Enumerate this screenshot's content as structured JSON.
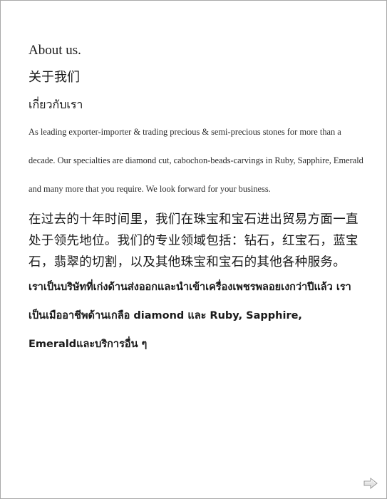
{
  "about": {
    "title_en": "About us.",
    "title_zh": "关于我们",
    "title_th": "เกี่ยวกับเรา",
    "para_en": "As leading exporter-importer & trading precious & semi-precious stones for more than a decade. Our specialties are diamond cut, cabochon-beads-carvings in Ruby, Sapphire, Emerald and many more that you require. We look forward for your business.",
    "para_zh": "在过去的十年时间里，我们在珠宝和宝石进出贸易方面一直处于领先地位。我们的专业领域包括：钻石，红宝石，蓝宝石，翡翠的切割，以及其他珠宝和宝石的其他各种服务。",
    "para_th": "เราเป็นบริษัทที่เก่งด้านส่งออกและนำเข้าเครื่องเพชรพลอยเงกว่าปีแล้ว เราเป็นเมืออาชีพด้านเกลือ diamond และ Ruby, Sapphire, Emeraldและบริการอื่น ๆ"
  },
  "navigation": {
    "next_icon": "next-arrow-icon"
  },
  "colors": {
    "text": "#1a1a1a",
    "border": "#a9a9a9",
    "arrow": "#9a9a9a"
  }
}
